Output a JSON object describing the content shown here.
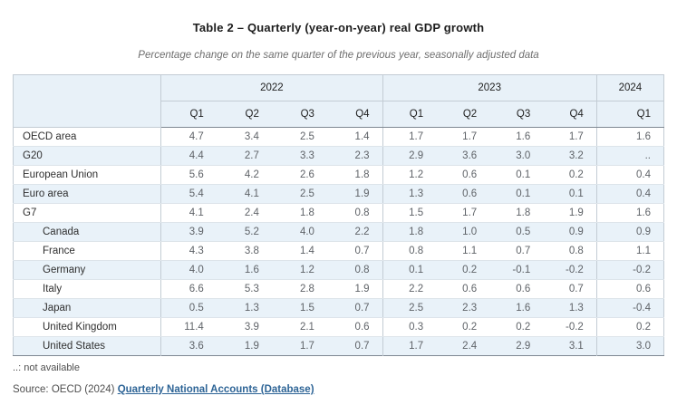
{
  "page": {
    "title": "Table 2 – Quarterly (year-on-year) real GDP growth",
    "subtitle": "Percentage change on the same quarter of the previous year, seasonally adjusted data",
    "footnote": "..: not available",
    "source": {
      "prefix": "Source: OECD (2024) ",
      "link_label": "Quarterly National Accounts (Database)"
    },
    "not_available_symbol": ".."
  },
  "colors": {
    "header_bg": "#e8f1f8",
    "stripe_bg": "#e9f2f9",
    "border_light": "#c3ccd4",
    "border_row": "#dde4ea",
    "border_dark": "#7e8892",
    "link": "#2d6496"
  },
  "chart_data": {
    "type": "table",
    "title": "Table 2 – Quarterly (year-on-year) real GDP growth",
    "subtitle": "Percentage change on the same quarter of the previous year, seasonally adjusted data",
    "year_groups": [
      {
        "label": "2022",
        "quarters": [
          "Q1",
          "Q2",
          "Q3",
          "Q4"
        ]
      },
      {
        "label": "2023",
        "quarters": [
          "Q1",
          "Q2",
          "Q3",
          "Q4"
        ]
      },
      {
        "label": "2024",
        "quarters": [
          "Q1"
        ]
      }
    ],
    "columns": [
      "2022 Q1",
      "2022 Q2",
      "2022 Q3",
      "2022 Q4",
      "2023 Q1",
      "2023 Q2",
      "2023 Q3",
      "2023 Q4",
      "2024 Q1"
    ],
    "rows": [
      {
        "label": "OECD area",
        "indent": false,
        "values": [
          "4.7",
          "3.4",
          "2.5",
          "1.4",
          "1.7",
          "1.7",
          "1.6",
          "1.7",
          "1.6"
        ]
      },
      {
        "label": "G20",
        "indent": false,
        "values": [
          "4.4",
          "2.7",
          "3.3",
          "2.3",
          "2.9",
          "3.6",
          "3.0",
          "3.2",
          ".."
        ]
      },
      {
        "label": "European Union",
        "indent": false,
        "values": [
          "5.6",
          "4.2",
          "2.6",
          "1.8",
          "1.2",
          "0.6",
          "0.1",
          "0.2",
          "0.4"
        ]
      },
      {
        "label": "Euro area",
        "indent": false,
        "values": [
          "5.4",
          "4.1",
          "2.5",
          "1.9",
          "1.3",
          "0.6",
          "0.1",
          "0.1",
          "0.4"
        ]
      },
      {
        "label": "G7",
        "indent": false,
        "values": [
          "4.1",
          "2.4",
          "1.8",
          "0.8",
          "1.5",
          "1.7",
          "1.8",
          "1.9",
          "1.6"
        ]
      },
      {
        "label": "Canada",
        "indent": true,
        "values": [
          "3.9",
          "5.2",
          "4.0",
          "2.2",
          "1.8",
          "1.0",
          "0.5",
          "0.9",
          "0.9"
        ]
      },
      {
        "label": "France",
        "indent": true,
        "values": [
          "4.3",
          "3.8",
          "1.4",
          "0.7",
          "0.8",
          "1.1",
          "0.7",
          "0.8",
          "1.1"
        ]
      },
      {
        "label": "Germany",
        "indent": true,
        "values": [
          "4.0",
          "1.6",
          "1.2",
          "0.8",
          "0.1",
          "0.2",
          "-0.1",
          "-0.2",
          "-0.2"
        ]
      },
      {
        "label": "Italy",
        "indent": true,
        "values": [
          "6.6",
          "5.3",
          "2.8",
          "1.9",
          "2.2",
          "0.6",
          "0.6",
          "0.7",
          "0.6"
        ]
      },
      {
        "label": "Japan",
        "indent": true,
        "values": [
          "0.5",
          "1.3",
          "1.5",
          "0.7",
          "2.5",
          "2.3",
          "1.6",
          "1.3",
          "-0.4"
        ]
      },
      {
        "label": "United Kingdom",
        "indent": true,
        "values": [
          "11.4",
          "3.9",
          "2.1",
          "0.6",
          "0.3",
          "0.2",
          "0.2",
          "-0.2",
          "0.2"
        ]
      },
      {
        "label": "United States",
        "indent": true,
        "values": [
          "3.6",
          "1.9",
          "1.7",
          "0.7",
          "1.7",
          "2.4",
          "2.9",
          "3.1",
          "3.0"
        ]
      }
    ]
  }
}
